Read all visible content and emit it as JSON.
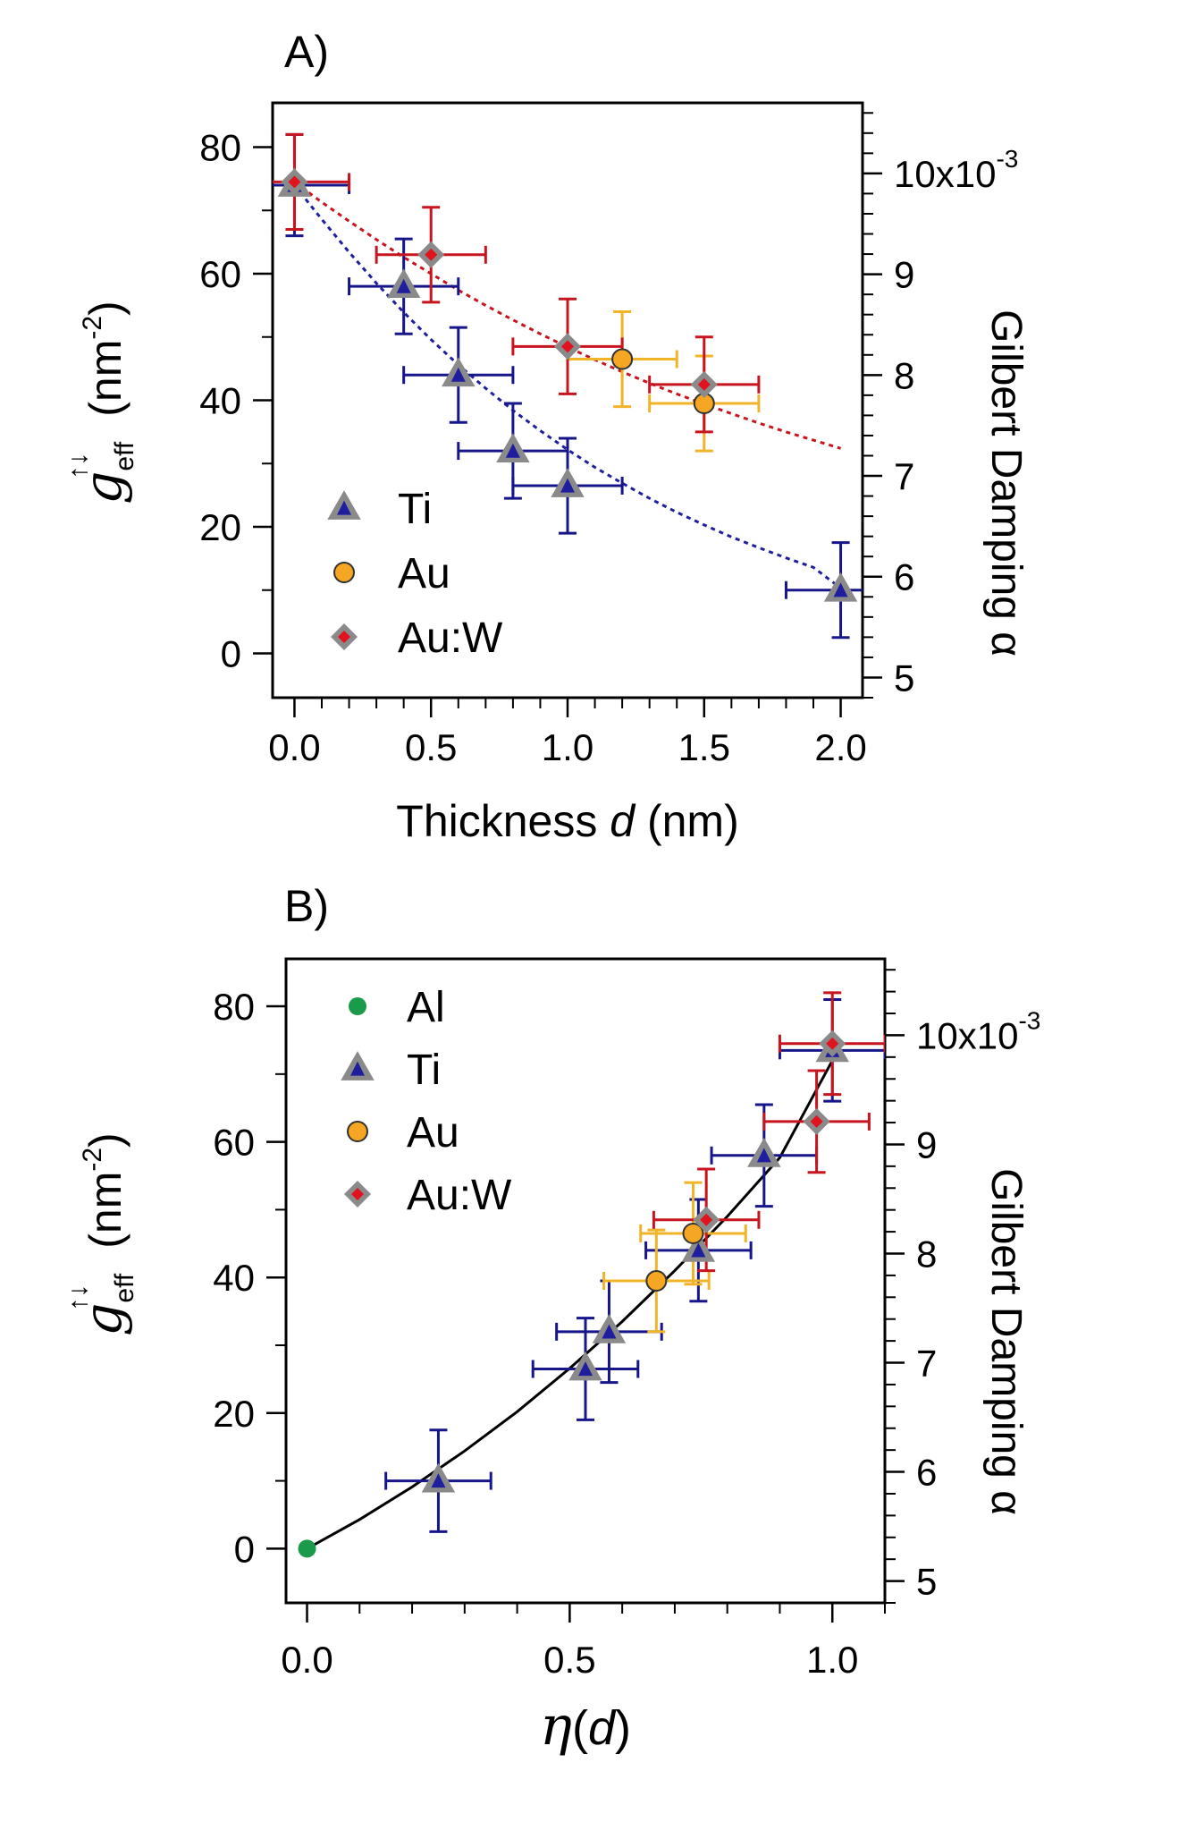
{
  "chart_data": [
    {
      "panel": "A)",
      "type": "scatter",
      "xlabel": "Thickness d (nm)",
      "xlabel_parts": [
        "Thickness ",
        "d",
        " (nm)"
      ],
      "ylabel": "g_eff^{↑↓} (nm^-2)",
      "ylabel_parts": {
        "symbol": "g",
        "sup": "↑↓",
        "sub": "eff",
        "unit_open": "(nm",
        "unit_exp": "-2",
        "unit_close": ")"
      },
      "y2label": "Gilbert Damping α",
      "xlim": [
        -0.08,
        2.08
      ],
      "ylim": [
        -7,
        87
      ],
      "y2lim": [
        4.8,
        10.7
      ],
      "x_ticks": [
        0.0,
        0.5,
        1.0,
        1.5,
        2.0
      ],
      "x_tick_labels": [
        "0.0",
        "0.5",
        "1.0",
        "1.5",
        "2.0"
      ],
      "y_ticks": [
        0,
        20,
        40,
        60,
        80
      ],
      "y_tick_labels": [
        "0",
        "20",
        "40",
        "60",
        "80"
      ],
      "y2_ticks": [
        5,
        6,
        7,
        8,
        9,
        10
      ],
      "y2_tick_labels": [
        "5",
        "6",
        "7",
        "8",
        "9",
        "10x10"
      ],
      "y2_exponent": "-3",
      "legend": [
        "Ti",
        "Au",
        "Au:W"
      ],
      "series": [
        {
          "name": "Ti",
          "marker": "triangle",
          "color": "#1f1f9e",
          "errcolor": "#16168a",
          "x": [
            0.0,
            0.4,
            0.6,
            0.8,
            1.0,
            2.0
          ],
          "y": [
            74,
            58,
            44,
            32,
            26.5,
            10
          ],
          "xerr": [
            0.2,
            0.2,
            0.2,
            0.2,
            0.2,
            0.2
          ],
          "yerr": [
            8,
            7.5,
            7.5,
            7.5,
            7.5,
            7.5
          ]
        },
        {
          "name": "Au",
          "marker": "circle",
          "color": "#f5a623",
          "errcolor": "#f0b429",
          "x": [
            1.2,
            1.5
          ],
          "y": [
            46.5,
            39.5
          ],
          "xerr": [
            0.2,
            0.2
          ],
          "yerr": [
            7.5,
            7.5
          ]
        },
        {
          "name": "Au:W",
          "marker": "diamond",
          "color": "#e0141e",
          "errcolor": "#c8141e",
          "x": [
            0.0,
            0.5,
            1.0,
            1.5
          ],
          "y": [
            74.5,
            63,
            48.5,
            42.5
          ],
          "xerr": [
            0.2,
            0.2,
            0.2,
            0.2
          ],
          "yerr": [
            7.5,
            7.5,
            7.5,
            7.5
          ]
        }
      ],
      "fits": [
        {
          "name": "Ti fit",
          "color": "#1f1f9e",
          "style": "dotted",
          "x": [
            0,
            0.1,
            0.2,
            0.3,
            0.4,
            0.5,
            0.6,
            0.7,
            0.8,
            0.9,
            1.0,
            1.1,
            1.2,
            1.3,
            1.4,
            1.5,
            1.6,
            1.7,
            1.8,
            1.9,
            2.0
          ],
          "y": [
            74,
            68.6,
            63.4,
            58.5,
            53.9,
            49.6,
            45.6,
            41.9,
            38.4,
            35.2,
            32.2,
            29.4,
            26.9,
            24.5,
            22.3,
            20.3,
            18.4,
            16.7,
            15.1,
            13.6,
            10.3
          ]
        },
        {
          "name": "Au:W fit",
          "color": "#c8141e",
          "style": "dotted",
          "x": [
            0,
            0.1,
            0.2,
            0.3,
            0.4,
            0.5,
            0.6,
            0.7,
            0.8,
            0.9,
            1.0,
            1.1,
            1.2,
            1.3,
            1.4,
            1.5,
            1.6,
            1.7,
            1.8,
            1.9,
            2.0
          ],
          "y": [
            74.5,
            71.3,
            68.3,
            65.4,
            62.6,
            60.0,
            57.4,
            55.0,
            52.7,
            50.5,
            48.4,
            46.4,
            44.5,
            42.7,
            41.0,
            39.4,
            37.9,
            36.4,
            35.0,
            33.7,
            32.4
          ]
        }
      ]
    },
    {
      "panel": "B)",
      "type": "scatter",
      "xlabel": "η(d)",
      "xlabel_parts": {
        "symbol": "η",
        "open": "(",
        "var": "d",
        "close": ")"
      },
      "ylabel": "g_eff^{↑↓} (nm^-2)",
      "ylabel_parts": {
        "symbol": "g",
        "sup": "↑↓",
        "sub": "eff",
        "unit_open": "(nm",
        "unit_exp": "-2",
        "unit_close": ")"
      },
      "y2label": "Gilbert Damping α",
      "xlim": [
        -0.04,
        1.1
      ],
      "ylim": [
        -8,
        87
      ],
      "y2lim": [
        4.8,
        10.7
      ],
      "x_ticks": [
        0.0,
        0.5,
        1.0
      ],
      "x_tick_labels": [
        "0.0",
        "0.5",
        "1.0"
      ],
      "y_ticks": [
        0,
        20,
        40,
        60,
        80
      ],
      "y_tick_labels": [
        "0",
        "20",
        "40",
        "60",
        "80"
      ],
      "y2_ticks": [
        5,
        6,
        7,
        8,
        9,
        10
      ],
      "y2_tick_labels": [
        "5",
        "6",
        "7",
        "8",
        "9",
        "10x10"
      ],
      "y2_exponent": "-3",
      "legend": [
        "Al",
        "Ti",
        "Au",
        "Au:W"
      ],
      "series": [
        {
          "name": "Al",
          "marker": "dot",
          "color": "#1a9a4a",
          "errcolor": "#1a9a4a",
          "x": [
            0.0
          ],
          "y": [
            0
          ],
          "xerr": [
            0
          ],
          "yerr": [
            0
          ]
        },
        {
          "name": "Ti",
          "marker": "triangle",
          "color": "#1f1f9e",
          "errcolor": "#16168a",
          "x": [
            0.25,
            0.53,
            0.575,
            0.745,
            0.87,
            1.0
          ],
          "y": [
            10,
            26.5,
            32,
            44,
            58,
            73.5
          ],
          "xerr": [
            0.1,
            0.1,
            0.1,
            0.1,
            0.1,
            0.1
          ],
          "yerr": [
            7.5,
            7.5,
            7.5,
            7.5,
            7.5,
            7.5
          ]
        },
        {
          "name": "Au",
          "marker": "circle",
          "color": "#f5a623",
          "errcolor": "#f0b429",
          "x": [
            0.665,
            0.735
          ],
          "y": [
            39.5,
            46.5
          ],
          "xerr": [
            0.1,
            0.1
          ],
          "yerr": [
            7.5,
            7.5
          ]
        },
        {
          "name": "Au:W",
          "marker": "diamond",
          "color": "#e0141e",
          "errcolor": "#c8141e",
          "x": [
            0.76,
            0.97,
            1.0
          ],
          "y": [
            48.5,
            63,
            74.5
          ],
          "xerr": [
            0.1,
            0.1,
            0.1
          ],
          "yerr": [
            7.5,
            7.5,
            7.5
          ]
        }
      ],
      "fits": [
        {
          "name": "fit",
          "color": "#000000",
          "style": "solid",
          "x": [
            0,
            0.1,
            0.2,
            0.3,
            0.4,
            0.5,
            0.6,
            0.7,
            0.8,
            0.9,
            1.0
          ],
          "y": [
            0,
            4.3,
            9.1,
            14.4,
            20.2,
            26.6,
            33.5,
            41.0,
            49.0,
            57.7,
            72.0
          ]
        }
      ]
    }
  ]
}
